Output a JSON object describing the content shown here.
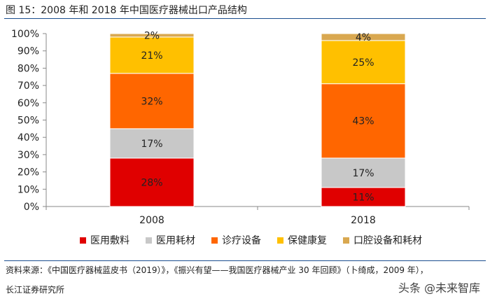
{
  "header": {
    "title": "图 15：2008 年和 2018 年中国医疗器械出口产品结构"
  },
  "footer": {
    "source": "资料来源：《中国医疗器械蓝皮书（2019）》，《振兴有望——我国医疗器械产业 30 年回顾》（卜绮成，2009 年），",
    "org": "长江证券研究所",
    "watermark": "头条 @未来智库"
  },
  "chart_data": {
    "type": "bar",
    "stacked": true,
    "title": "2008 年和 2018 年中国医疗器械出口产品结构",
    "categories": [
      "2008",
      "2018"
    ],
    "yticks": [
      "0%",
      "10%",
      "20%",
      "30%",
      "40%",
      "50%",
      "60%",
      "70%",
      "80%",
      "90%",
      "100%"
    ],
    "ylim": [
      0,
      100
    ],
    "legend_position": "bottom",
    "series": [
      {
        "name": "医用敷料",
        "color": "#e00000",
        "values": [
          28,
          11
        ],
        "labels": [
          "28%",
          "11%"
        ]
      },
      {
        "name": "医用耗材",
        "color": "#c8c8c8",
        "values": [
          17,
          17
        ],
        "labels": [
          "17%",
          "17%"
        ]
      },
      {
        "name": "诊疗设备",
        "color": "#ff6600",
        "values": [
          32,
          43
        ],
        "labels": [
          "32%",
          "43%"
        ]
      },
      {
        "name": "保健康复",
        "color": "#ffc000",
        "values": [
          21,
          25
        ],
        "labels": [
          "21%",
          "25%"
        ]
      },
      {
        "name": "口腔设备和耗材",
        "color": "#d9a850",
        "values": [
          2,
          4
        ],
        "labels": [
          "2%",
          "4%"
        ]
      }
    ]
  }
}
